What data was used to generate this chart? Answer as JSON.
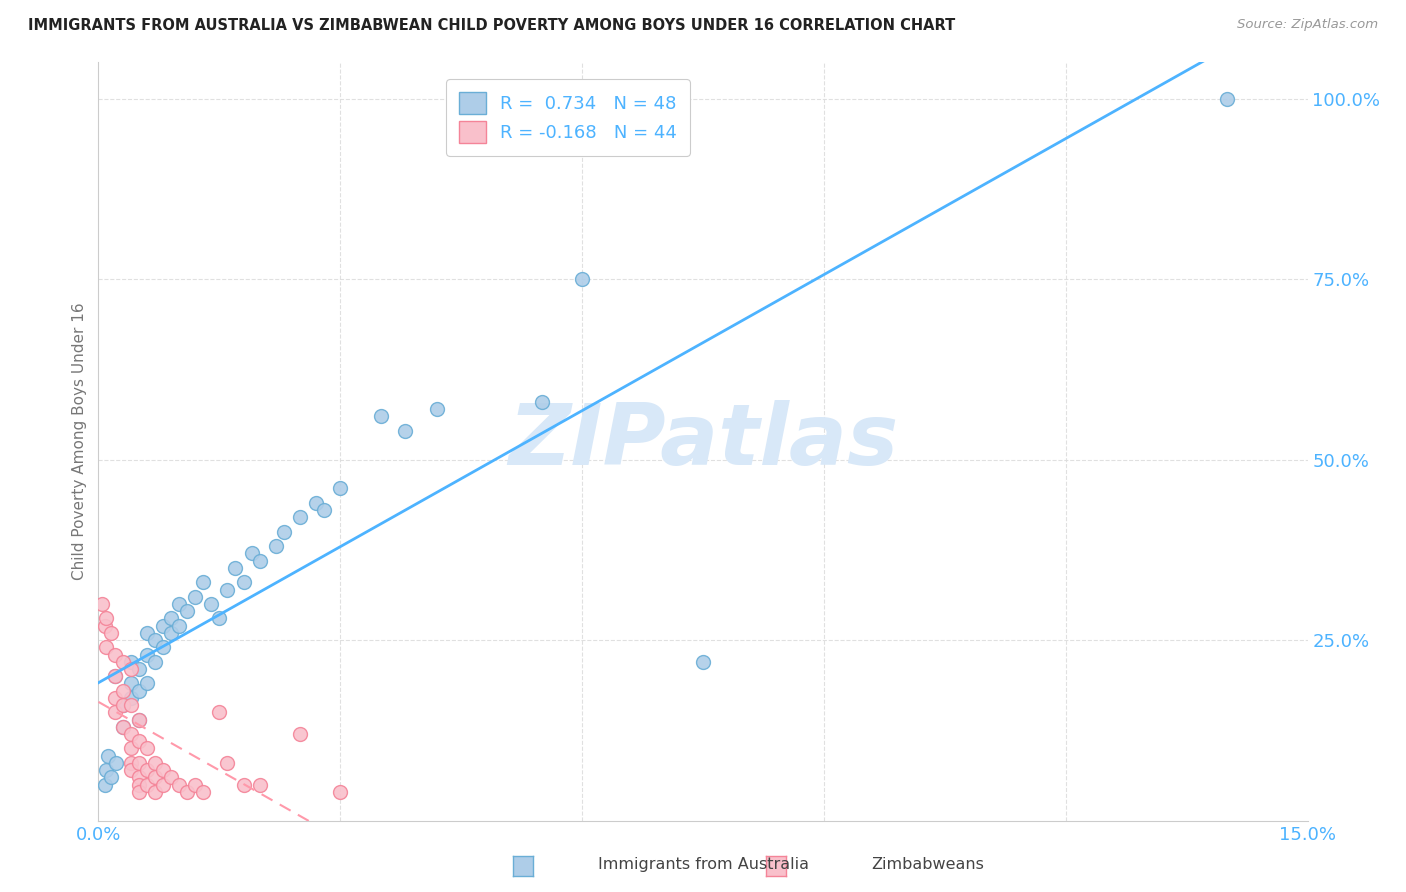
{
  "title": "IMMIGRANTS FROM AUSTRALIA VS ZIMBABWEAN CHILD POVERTY AMONG BOYS UNDER 16 CORRELATION CHART",
  "source": "Source: ZipAtlas.com",
  "ylabel": "Child Poverty Among Boys Under 16",
  "watermark": "ZIPatlas",
  "legend_blue_R": "R =  0.734",
  "legend_blue_N": "N = 48",
  "legend_pink_R": "R = -0.168",
  "legend_pink_N": "N = 44",
  "blue_color": "#aecde8",
  "pink_color": "#f9c0cb",
  "blue_edge_color": "#6aaed6",
  "pink_edge_color": "#f48498",
  "blue_line_color": "#4db3ff",
  "pink_line_color": "#ff99aa",
  "title_color": "#222222",
  "axis_tick_color": "#4db3ff",
  "ylabel_color": "#777777",
  "watermark_color": "#d8e8f8",
  "grid_color": "#dddddd",
  "blue_scatter": [
    [
      0.0008,
      0.05
    ],
    [
      0.001,
      0.07
    ],
    [
      0.0012,
      0.09
    ],
    [
      0.0015,
      0.06
    ],
    [
      0.002,
      0.2
    ],
    [
      0.0022,
      0.08
    ],
    [
      0.003,
      0.13
    ],
    [
      0.003,
      0.16
    ],
    [
      0.004,
      0.17
    ],
    [
      0.004,
      0.19
    ],
    [
      0.004,
      0.22
    ],
    [
      0.005,
      0.14
    ],
    [
      0.005,
      0.18
    ],
    [
      0.005,
      0.21
    ],
    [
      0.006,
      0.19
    ],
    [
      0.006,
      0.23
    ],
    [
      0.006,
      0.26
    ],
    [
      0.007,
      0.22
    ],
    [
      0.007,
      0.25
    ],
    [
      0.008,
      0.24
    ],
    [
      0.008,
      0.27
    ],
    [
      0.009,
      0.26
    ],
    [
      0.009,
      0.28
    ],
    [
      0.01,
      0.27
    ],
    [
      0.01,
      0.3
    ],
    [
      0.011,
      0.29
    ],
    [
      0.012,
      0.31
    ],
    [
      0.013,
      0.33
    ],
    [
      0.014,
      0.3
    ],
    [
      0.015,
      0.28
    ],
    [
      0.016,
      0.32
    ],
    [
      0.017,
      0.35
    ],
    [
      0.018,
      0.33
    ],
    [
      0.019,
      0.37
    ],
    [
      0.02,
      0.36
    ],
    [
      0.022,
      0.38
    ],
    [
      0.023,
      0.4
    ],
    [
      0.025,
      0.42
    ],
    [
      0.027,
      0.44
    ],
    [
      0.028,
      0.43
    ],
    [
      0.03,
      0.46
    ],
    [
      0.035,
      0.56
    ],
    [
      0.038,
      0.54
    ],
    [
      0.042,
      0.57
    ],
    [
      0.055,
      0.58
    ],
    [
      0.06,
      0.75
    ],
    [
      0.075,
      0.22
    ],
    [
      0.14,
      1.0
    ]
  ],
  "pink_scatter": [
    [
      0.0005,
      0.3
    ],
    [
      0.0008,
      0.27
    ],
    [
      0.001,
      0.28
    ],
    [
      0.001,
      0.24
    ],
    [
      0.0015,
      0.26
    ],
    [
      0.002,
      0.23
    ],
    [
      0.002,
      0.2
    ],
    [
      0.002,
      0.17
    ],
    [
      0.002,
      0.15
    ],
    [
      0.003,
      0.22
    ],
    [
      0.003,
      0.18
    ],
    [
      0.003,
      0.16
    ],
    [
      0.003,
      0.13
    ],
    [
      0.004,
      0.21
    ],
    [
      0.004,
      0.16
    ],
    [
      0.004,
      0.12
    ],
    [
      0.004,
      0.1
    ],
    [
      0.004,
      0.08
    ],
    [
      0.004,
      0.07
    ],
    [
      0.005,
      0.14
    ],
    [
      0.005,
      0.11
    ],
    [
      0.005,
      0.08
    ],
    [
      0.005,
      0.06
    ],
    [
      0.005,
      0.05
    ],
    [
      0.005,
      0.04
    ],
    [
      0.006,
      0.1
    ],
    [
      0.006,
      0.07
    ],
    [
      0.006,
      0.05
    ],
    [
      0.007,
      0.08
    ],
    [
      0.007,
      0.06
    ],
    [
      0.007,
      0.04
    ],
    [
      0.008,
      0.07
    ],
    [
      0.008,
      0.05
    ],
    [
      0.009,
      0.06
    ],
    [
      0.01,
      0.05
    ],
    [
      0.011,
      0.04
    ],
    [
      0.012,
      0.05
    ],
    [
      0.013,
      0.04
    ],
    [
      0.015,
      0.15
    ],
    [
      0.016,
      0.08
    ],
    [
      0.018,
      0.05
    ],
    [
      0.02,
      0.05
    ],
    [
      0.025,
      0.12
    ],
    [
      0.03,
      0.04
    ]
  ],
  "xlim": [
    0.0,
    0.15
  ],
  "ylim": [
    0.0,
    1.05
  ],
  "xticks": [
    0.0,
    0.03,
    0.06,
    0.09,
    0.12,
    0.15
  ],
  "xtick_labels": [
    "0.0%",
    "",
    "",
    "",
    "",
    "15.0%"
  ],
  "yticks": [
    0.25,
    0.5,
    0.75,
    1.0
  ],
  "ytick_labels": [
    "25.0%",
    "50.0%",
    "75.0%",
    "100.0%"
  ],
  "figsize": [
    14.06,
    8.92
  ],
  "dpi": 100
}
